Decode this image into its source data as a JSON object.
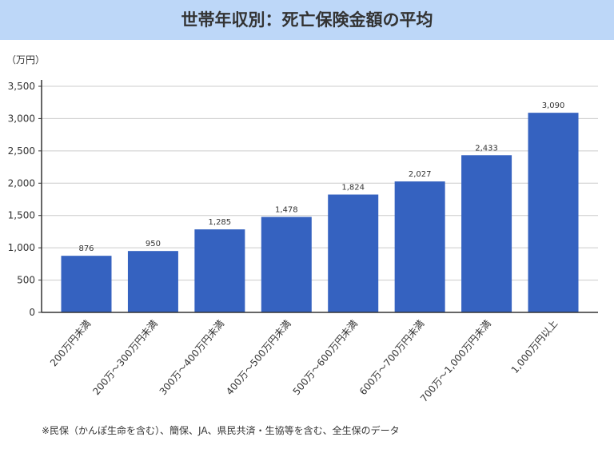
{
  "chart_data": {
    "type": "bar",
    "title": "世帯年収別：死亡保険金額の平均",
    "ylabel": "（万円）",
    "categories": [
      "200万円未満",
      "200万～300万円未満",
      "300万～400万円未満",
      "400万～500万円未満",
      "500万～600万円未満",
      "600万～700万円未満",
      "700万～1,000万円未満",
      "1,000万円以上"
    ],
    "values": [
      876,
      950,
      1285,
      1478,
      1824,
      2027,
      2433,
      3090
    ],
    "data_labels": [
      "876",
      "950",
      "1,285",
      "1,478",
      "1,824",
      "2,027",
      "2,433",
      "3,090"
    ],
    "yticks": [
      "0",
      "500",
      "1,000",
      "1,500",
      "2,000",
      "2,500",
      "3,000",
      "3,500"
    ],
    "ylim": [
      0,
      3500
    ],
    "grid": true,
    "bar_color": "#3562c0",
    "note": "※民保（かんぽ生命を含む）、簡保、JA、県民共済・生協等を含む、全生保のデータ"
  },
  "colors": {
    "header_bg": "#bdd7f8"
  }
}
